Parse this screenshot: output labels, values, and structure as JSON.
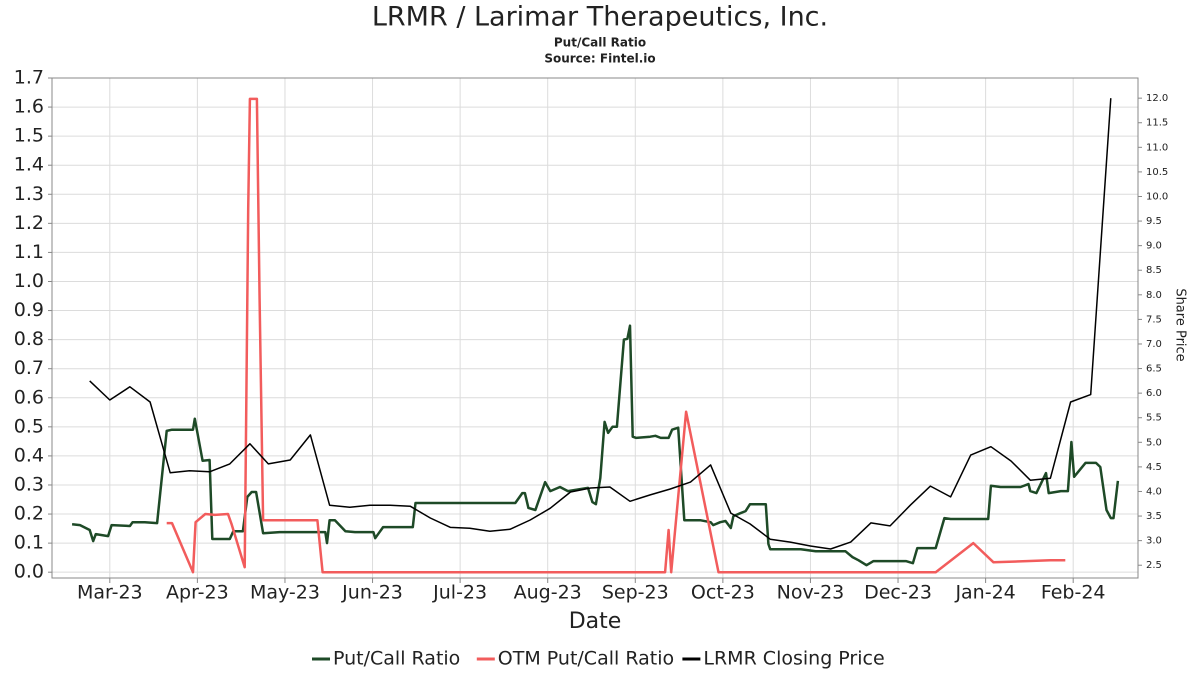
{
  "chart_data": {
    "type": "line",
    "title": "LRMR / Larimar Therapeutics, Inc.",
    "subtitle": "Put/Call Ratio",
    "source": "Source: Fintel.io",
    "x_label": "Date",
    "y2_label": "Share Price",
    "grid": true,
    "legend": "bottom",
    "xlim": [
      2.34,
      14.74
    ],
    "xticks": [
      {
        "value": 3,
        "label": "Mar-23"
      },
      {
        "value": 4,
        "label": "Apr-23"
      },
      {
        "value": 5,
        "label": "May-23"
      },
      {
        "value": 6,
        "label": "Jun-23"
      },
      {
        "value": 7,
        "label": "Jul-23"
      },
      {
        "value": 8,
        "label": "Aug-23"
      },
      {
        "value": 9,
        "label": "Sep-23"
      },
      {
        "value": 10,
        "label": "Oct-23"
      },
      {
        "value": 11,
        "label": "Nov-23"
      },
      {
        "value": 12,
        "label": "Dec-23"
      },
      {
        "value": 13,
        "label": "Jan-24"
      },
      {
        "value": 14,
        "label": "Feb-24"
      }
    ],
    "ylim": [
      -0.02,
      1.7
    ],
    "yticks": [
      {
        "value": 0,
        "label": "0.0"
      },
      0.1,
      0.2,
      0.3,
      0.4,
      0.5,
      0.6,
      0.7,
      0.8,
      0.9,
      {
        "value": 1,
        "label": "1.0"
      },
      1.1,
      1.2,
      1.3,
      1.4,
      1.5,
      1.6,
      1.7
    ],
    "y2lim": [
      2.24,
      12.41
    ],
    "y2ticks": [
      2.5,
      {
        "value": 3,
        "label": "3.0"
      },
      3.5,
      {
        "value": 4,
        "label": "4.0"
      },
      4.5,
      {
        "value": 5,
        "label": "5.0"
      },
      5.5,
      {
        "value": 6,
        "label": "6.0"
      },
      6.5,
      {
        "value": 7,
        "label": "7.0"
      },
      7.5,
      {
        "value": 8,
        "label": "8.0"
      },
      8.5,
      {
        "value": 9,
        "label": "9.0"
      },
      9.5,
      {
        "value": 10,
        "label": "10.0"
      },
      10.5,
      {
        "value": 11,
        "label": "11.0"
      },
      11.5,
      {
        "value": 12,
        "label": "12.0"
      }
    ],
    "series": [
      {
        "name": "Put/Call Ratio",
        "color": "#1e4a27",
        "width": 2.5,
        "x": [
          2.57,
          2.66,
          2.77,
          2.81,
          2.84,
          2.98,
          3.02,
          3.23,
          3.26,
          3.4,
          3.54,
          3.65,
          3.71,
          3.95,
          3.97,
          4.06,
          4.14,
          4.17,
          4.37,
          4.41,
          4.52,
          4.57,
          4.62,
          4.67,
          4.75,
          4.94,
          5.46,
          5.48,
          5.51,
          5.57,
          5.69,
          5.8,
          6.01,
          6.03,
          6.12,
          6.46,
          6.49,
          7.63,
          7.71,
          7.74,
          7.78,
          7.86,
          7.97,
          8.03,
          8.14,
          8.23,
          8.46,
          8.51,
          8.55,
          8.6,
          8.65,
          8.69,
          8.74,
          8.79,
          8.87,
          8.91,
          8.94,
          8.97,
          9.01,
          9.17,
          9.23,
          9.29,
          9.38,
          9.42,
          9.49,
          9.56,
          9.74,
          9.86,
          9.89,
          9.97,
          10.03,
          10.09,
          10.12,
          10.2,
          10.26,
          10.31,
          10.49,
          10.52,
          10.54,
          10.89,
          11.06,
          11.4,
          11.48,
          11.55,
          11.64,
          11.72,
          11.8,
          12.09,
          12.17,
          12.22,
          12.43,
          12.53,
          12.6,
          13.03,
          13.06,
          13.17,
          13.4,
          13.49,
          13.51,
          13.58,
          13.69,
          13.72,
          13.86,
          13.94,
          13.98,
          14.01,
          14.14,
          14.26,
          14.31,
          14.38,
          14.43,
          14.46,
          14.51
        ],
        "values": [
          0.165,
          0.162,
          0.145,
          0.107,
          0.131,
          0.124,
          0.162,
          0.159,
          0.172,
          0.172,
          0.169,
          0.486,
          0.49,
          0.49,
          0.528,
          0.383,
          0.386,
          0.114,
          0.114,
          0.141,
          0.141,
          0.259,
          0.276,
          0.276,
          0.134,
          0.138,
          0.138,
          0.1,
          0.179,
          0.179,
          0.141,
          0.138,
          0.138,
          0.117,
          0.155,
          0.155,
          0.238,
          0.238,
          0.272,
          0.272,
          0.221,
          0.214,
          0.31,
          0.279,
          0.293,
          0.279,
          0.29,
          0.241,
          0.234,
          0.324,
          0.517,
          0.479,
          0.5,
          0.5,
          0.8,
          0.803,
          0.848,
          0.466,
          0.462,
          0.466,
          0.469,
          0.462,
          0.462,
          0.49,
          0.497,
          0.179,
          0.179,
          0.172,
          0.162,
          0.172,
          0.176,
          0.152,
          0.193,
          0.203,
          0.21,
          0.234,
          0.234,
          0.097,
          0.079,
          0.079,
          0.072,
          0.072,
          0.052,
          0.041,
          0.024,
          0.038,
          0.038,
          0.038,
          0.031,
          0.083,
          0.083,
          0.186,
          0.183,
          0.183,
          0.297,
          0.293,
          0.293,
          0.303,
          0.279,
          0.272,
          0.341,
          0.272,
          0.279,
          0.279,
          0.448,
          0.328,
          0.376,
          0.376,
          0.362,
          0.214,
          0.186,
          0.186,
          0.314
        ]
      },
      {
        "name": "OTM Put/Call Ratio",
        "color": "#f25c5c",
        "width": 2.5,
        "x": [
          3.65,
          3.71,
          3.95,
          3.98,
          4.09,
          4.2,
          4.35,
          4.39,
          4.54,
          4.58,
          4.6,
          4.68,
          4.71,
          4.75,
          5.37,
          5.43,
          9.34,
          9.38,
          9.41,
          9.58,
          9.95,
          12.43,
          12.86,
          13.09,
          13.74,
          13.91
        ],
        "values": [
          0.169,
          0.169,
          0,
          0.172,
          0.2,
          0.197,
          0.2,
          0.166,
          0.017,
          1.248,
          1.628,
          1.628,
          0.938,
          0.179,
          0.179,
          0,
          0,
          0.145,
          0,
          0.552,
          0,
          0,
          0.1,
          0.034,
          0.041,
          0.041
        ]
      },
      {
        "name": "LRMR Closing Price",
        "color": "#000000",
        "width": 1.5,
        "axis": "y2",
        "x": [
          2.77,
          3.0,
          3.23,
          3.46,
          3.69,
          3.91,
          4.14,
          4.37,
          4.6,
          4.81,
          5.06,
          5.29,
          5.51,
          5.74,
          5.97,
          6.2,
          6.43,
          6.66,
          6.89,
          7.11,
          7.34,
          7.57,
          7.8,
          8.03,
          8.26,
          8.49,
          8.71,
          8.94,
          9.17,
          9.4,
          9.63,
          9.86,
          10.09,
          10.31,
          10.54,
          10.77,
          11.0,
          11.23,
          11.46,
          11.69,
          11.91,
          12.14,
          12.37,
          12.6,
          12.83,
          13.06,
          13.29,
          13.51,
          13.74,
          13.97,
          14.2,
          14.43
        ],
        "values": [
          6.25,
          5.86,
          6.13,
          5.82,
          4.38,
          4.42,
          4.4,
          4.56,
          4.97,
          4.56,
          4.64,
          5.15,
          3.72,
          3.68,
          3.72,
          3.72,
          3.7,
          3.46,
          3.27,
          3.25,
          3.19,
          3.23,
          3.42,
          3.66,
          3.99,
          4.07,
          4.09,
          3.8,
          3.93,
          4.05,
          4.19,
          4.54,
          3.56,
          3.34,
          3.03,
          2.97,
          2.89,
          2.83,
          2.97,
          3.36,
          3.3,
          3.72,
          4.11,
          3.89,
          4.74,
          4.91,
          4.62,
          4.23,
          4.27,
          5.82,
          5.97,
          12.0
        ]
      }
    ]
  }
}
